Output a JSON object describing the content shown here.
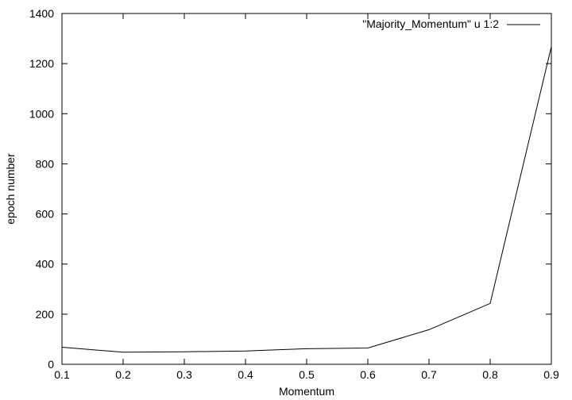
{
  "chart_data": {
    "type": "line",
    "title": "",
    "xlabel": "Momentum",
    "ylabel": "epoch number",
    "xlim": [
      0.1,
      0.9
    ],
    "ylim": [
      0,
      1400
    ],
    "xticks": [
      "0.1",
      "0.2",
      "0.3",
      "0.4",
      "0.5",
      "0.6",
      "0.7",
      "0.8",
      "0.9"
    ],
    "yticks": [
      "0",
      "200",
      "400",
      "600",
      "800",
      "1000",
      "1200",
      "1400"
    ],
    "grid": false,
    "legend_position": "top-right",
    "series": [
      {
        "name": "\"Majority_Momentum\" u 1:2",
        "color": "#000000",
        "x": [
          0.1,
          0.2,
          0.3,
          0.4,
          0.5,
          0.6,
          0.7,
          0.8,
          0.9
        ],
        "y": [
          68,
          48,
          50,
          53,
          62,
          65,
          138,
          243,
          1268
        ]
      }
    ]
  }
}
